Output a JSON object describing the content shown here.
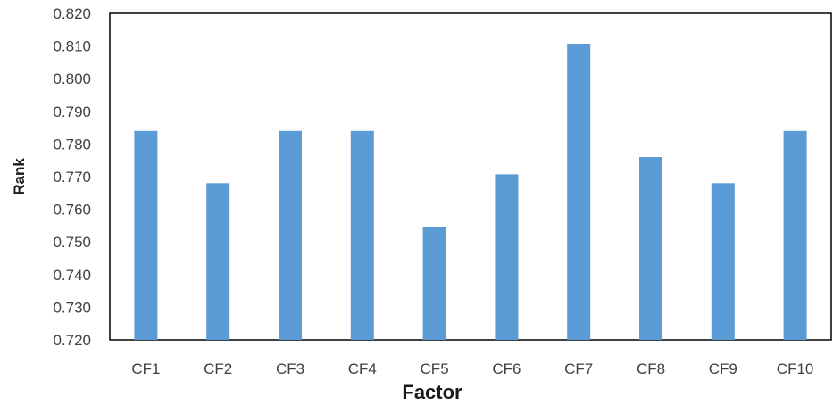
{
  "chart_data": {
    "type": "bar",
    "title": "",
    "xlabel": "Factor",
    "ylabel": "Rank",
    "categories": [
      "CF1",
      "CF2",
      "CF3",
      "CF4",
      "CF5",
      "CF6",
      "CF7",
      "CF8",
      "CF9",
      "CF10"
    ],
    "series": [
      {
        "values": [
          0.784,
          0.768,
          0.784,
          0.784,
          0.7547,
          0.7707,
          0.8107,
          0.776,
          0.768,
          0.784
        ]
      }
    ],
    "ylim": [
      0.72,
      0.82
    ],
    "yticks": [
      "0.720",
      "0.730",
      "0.740",
      "0.750",
      "0.760",
      "0.770",
      "0.780",
      "0.790",
      "0.800",
      "0.810",
      "0.820"
    ],
    "grid": false,
    "legend": "none",
    "bar_color": "#5B9BD5",
    "axis_color": "#000000"
  }
}
